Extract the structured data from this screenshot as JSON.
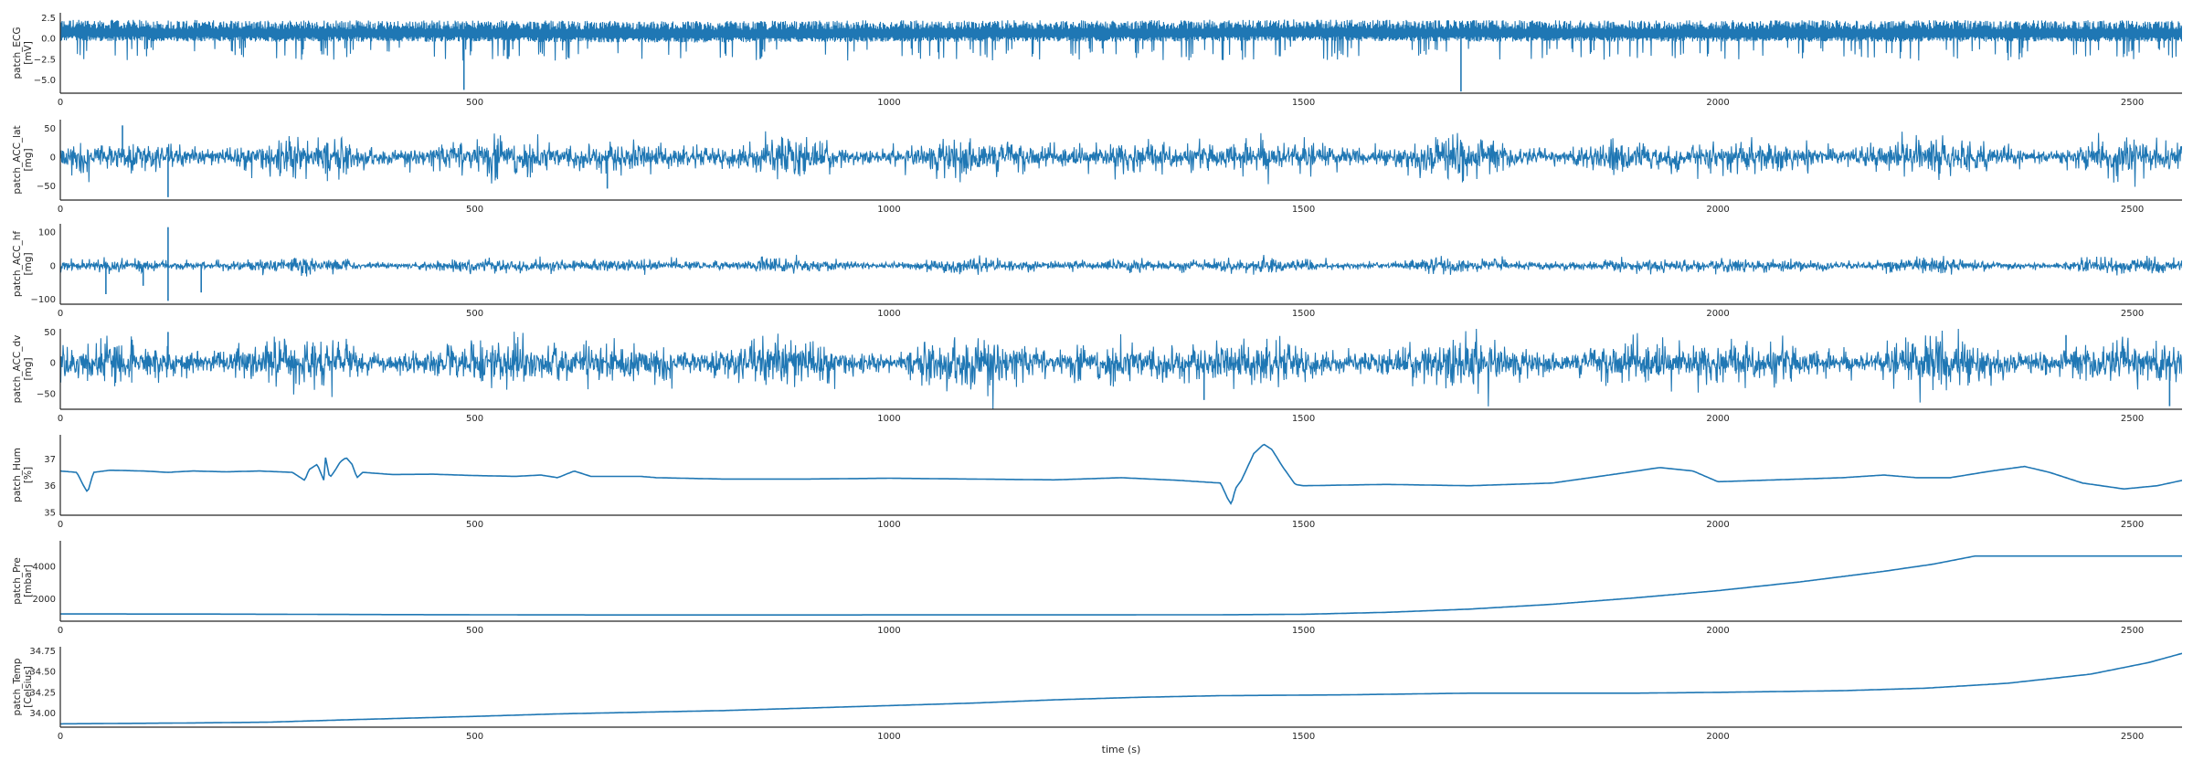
{
  "chart_data": {
    "type": "line",
    "xlabel": "time (s)",
    "xlim": [
      0,
      2560
    ],
    "xticks": [
      0,
      500,
      1000,
      1500,
      2000,
      2500
    ],
    "xtick_labels": [
      "0",
      "500",
      "1000",
      "1500",
      "2000",
      "2500"
    ],
    "grid": false,
    "line_color": "#1f77b4",
    "panels": [
      {
        "ylabel": [
          "patch_ECG",
          "[mV]"
        ],
        "ylim": [
          -6.6,
          3.1
        ],
        "yticks": [
          2.5,
          0.0,
          -2.5,
          -5.0
        ],
        "ytick_labels": [
          "2.5",
          "0.0",
          "−2.5",
          "−5.0"
        ],
        "style": "ecg",
        "spikes": [
          {
            "x": 487,
            "y": -6.2
          },
          {
            "x": 1690,
            "y": -6.4
          }
        ],
        "points": [
          [
            0,
            0.3
          ],
          [
            250,
            0.2
          ],
          [
            500,
            0.2
          ],
          [
            750,
            0.1
          ],
          [
            1000,
            0.2
          ],
          [
            1250,
            0.2
          ],
          [
            1500,
            0.3
          ],
          [
            1750,
            0.2
          ],
          [
            2000,
            0.2
          ],
          [
            2250,
            0.2
          ],
          [
            2560,
            0.2
          ]
        ]
      },
      {
        "ylabel": [
          "patch_ACC_lat",
          "[mg]"
        ],
        "ylim": [
          -75,
          65
        ],
        "yticks": [
          50,
          0,
          -50
        ],
        "ytick_labels": [
          "50",
          "0",
          "−50"
        ],
        "style": "noise",
        "spikes": [
          {
            "x": 130,
            "y": -70
          },
          {
            "x": 75,
            "y": 55
          },
          {
            "x": 660,
            "y": -55
          }
        ],
        "points": [
          [
            0,
            0
          ],
          [
            500,
            0
          ],
          [
            1000,
            0
          ],
          [
            1500,
            0
          ],
          [
            2000,
            0
          ],
          [
            2560,
            0
          ]
        ]
      },
      {
        "ylabel": [
          "patch_ACC_hf",
          "[mg]"
        ],
        "ylim": [
          -115,
          125
        ],
        "yticks": [
          100,
          0,
          -100
        ],
        "ytick_labels": [
          "100",
          "0",
          "−100"
        ],
        "style": "noise-small",
        "spikes": [
          {
            "x": 130,
            "y": 115
          },
          {
            "x": 130,
            "y": -105
          },
          {
            "x": 55,
            "y": -85
          },
          {
            "x": 100,
            "y": -60
          },
          {
            "x": 170,
            "y": -80
          }
        ],
        "points": [
          [
            0,
            0
          ],
          [
            500,
            0
          ],
          [
            1000,
            0
          ],
          [
            1500,
            0
          ],
          [
            2000,
            0
          ],
          [
            2560,
            0
          ]
        ]
      },
      {
        "ylabel": [
          "patch_ACC_dv",
          "[mg]"
        ],
        "ylim": [
          -75,
          55
        ],
        "yticks": [
          50,
          0,
          -50
        ],
        "ytick_labels": [
          "50",
          "0",
          "−50"
        ],
        "style": "noise-dense",
        "spikes": [
          {
            "x": 130,
            "y": 50
          },
          {
            "x": 2420,
            "y": 45
          },
          {
            "x": 1380,
            "y": -60
          },
          {
            "x": 2545,
            "y": -70
          }
        ],
        "points": [
          [
            0,
            0
          ],
          [
            500,
            0
          ],
          [
            1000,
            0
          ],
          [
            1500,
            0
          ],
          [
            2000,
            0
          ],
          [
            2560,
            0
          ]
        ]
      },
      {
        "ylabel": [
          "patch_Hum",
          "[%]"
        ],
        "ylim": [
          34.9,
          37.9
        ],
        "yticks": [
          37,
          36,
          35
        ],
        "ytick_labels": [
          "37",
          "36",
          "35"
        ],
        "style": "line",
        "points": [
          [
            0,
            36.55
          ],
          [
            20,
            36.5
          ],
          [
            28,
            36.0
          ],
          [
            33,
            35.75
          ],
          [
            40,
            36.5
          ],
          [
            60,
            36.58
          ],
          [
            100,
            36.55
          ],
          [
            130,
            36.5
          ],
          [
            160,
            36.55
          ],
          [
            200,
            36.52
          ],
          [
            240,
            36.55
          ],
          [
            280,
            36.5
          ],
          [
            295,
            36.2
          ],
          [
            300,
            36.6
          ],
          [
            310,
            36.8
          ],
          [
            318,
            36.2
          ],
          [
            320,
            37.05
          ],
          [
            325,
            36.3
          ],
          [
            330,
            36.5
          ],
          [
            338,
            36.9
          ],
          [
            345,
            37.05
          ],
          [
            352,
            36.8
          ],
          [
            358,
            36.3
          ],
          [
            365,
            36.5
          ],
          [
            400,
            36.42
          ],
          [
            450,
            36.43
          ],
          [
            500,
            36.38
          ],
          [
            550,
            36.35
          ],
          [
            580,
            36.4
          ],
          [
            600,
            36.3
          ],
          [
            620,
            36.55
          ],
          [
            640,
            36.35
          ],
          [
            700,
            36.35
          ],
          [
            720,
            36.3
          ],
          [
            800,
            36.25
          ],
          [
            900,
            36.25
          ],
          [
            1000,
            36.28
          ],
          [
            1100,
            36.25
          ],
          [
            1200,
            36.22
          ],
          [
            1280,
            36.3
          ],
          [
            1350,
            36.2
          ],
          [
            1400,
            36.1
          ],
          [
            1408,
            35.55
          ],
          [
            1413,
            35.3
          ],
          [
            1418,
            35.9
          ],
          [
            1425,
            36.2
          ],
          [
            1440,
            37.2
          ],
          [
            1452,
            37.55
          ],
          [
            1462,
            37.35
          ],
          [
            1475,
            36.7
          ],
          [
            1490,
            36.05
          ],
          [
            1500,
            36.0
          ],
          [
            1600,
            36.05
          ],
          [
            1700,
            36.0
          ],
          [
            1800,
            36.1
          ],
          [
            1880,
            36.45
          ],
          [
            1930,
            36.68
          ],
          [
            1970,
            36.55
          ],
          [
            2000,
            36.15
          ],
          [
            2050,
            36.2
          ],
          [
            2150,
            36.3
          ],
          [
            2200,
            36.4
          ],
          [
            2240,
            36.3
          ],
          [
            2280,
            36.3
          ],
          [
            2330,
            36.55
          ],
          [
            2370,
            36.72
          ],
          [
            2400,
            36.5
          ],
          [
            2440,
            36.1
          ],
          [
            2490,
            35.88
          ],
          [
            2530,
            36.0
          ],
          [
            2560,
            36.2
          ]
        ]
      },
      {
        "ylabel": [
          "patch_Pre",
          "[mbar]"
        ],
        "ylim": [
          600,
          5600
        ],
        "yticks": [
          4000,
          2000
        ],
        "ytick_labels": [
          "4000",
          "2000"
        ],
        "style": "line",
        "points": [
          [
            0,
            1050
          ],
          [
            200,
            1040
          ],
          [
            400,
            1010
          ],
          [
            600,
            990
          ],
          [
            800,
            985
          ],
          [
            1000,
            990
          ],
          [
            1200,
            990
          ],
          [
            1400,
            1000
          ],
          [
            1500,
            1030
          ],
          [
            1600,
            1150
          ],
          [
            1700,
            1350
          ],
          [
            1800,
            1650
          ],
          [
            1900,
            2050
          ],
          [
            2000,
            2500
          ],
          [
            2100,
            3050
          ],
          [
            2200,
            3700
          ],
          [
            2260,
            4150
          ],
          [
            2300,
            4550
          ],
          [
            2310,
            4650
          ],
          [
            2400,
            4650
          ],
          [
            2500,
            4650
          ],
          [
            2560,
            4650
          ]
        ]
      },
      {
        "ylabel": [
          "patch_Temp",
          "[Celsius]"
        ],
        "ylim": [
          33.83,
          34.8
        ],
        "yticks": [
          34.75,
          34.5,
          34.25,
          34.0
        ],
        "ytick_labels": [
          "34.75",
          "34.50",
          "34.25",
          "34.00"
        ],
        "style": "line",
        "points": [
          [
            0,
            33.87
          ],
          [
            150,
            33.88
          ],
          [
            250,
            33.89
          ],
          [
            350,
            33.92
          ],
          [
            500,
            33.96
          ],
          [
            600,
            33.99
          ],
          [
            800,
            34.03
          ],
          [
            1000,
            34.09
          ],
          [
            1100,
            34.12
          ],
          [
            1200,
            34.16
          ],
          [
            1300,
            34.19
          ],
          [
            1400,
            34.21
          ],
          [
            1550,
            34.22
          ],
          [
            1700,
            34.24
          ],
          [
            1900,
            34.24
          ],
          [
            2000,
            34.25
          ],
          [
            2150,
            34.27
          ],
          [
            2250,
            34.3
          ],
          [
            2350,
            34.36
          ],
          [
            2450,
            34.47
          ],
          [
            2520,
            34.61
          ],
          [
            2560,
            34.72
          ]
        ]
      }
    ]
  }
}
